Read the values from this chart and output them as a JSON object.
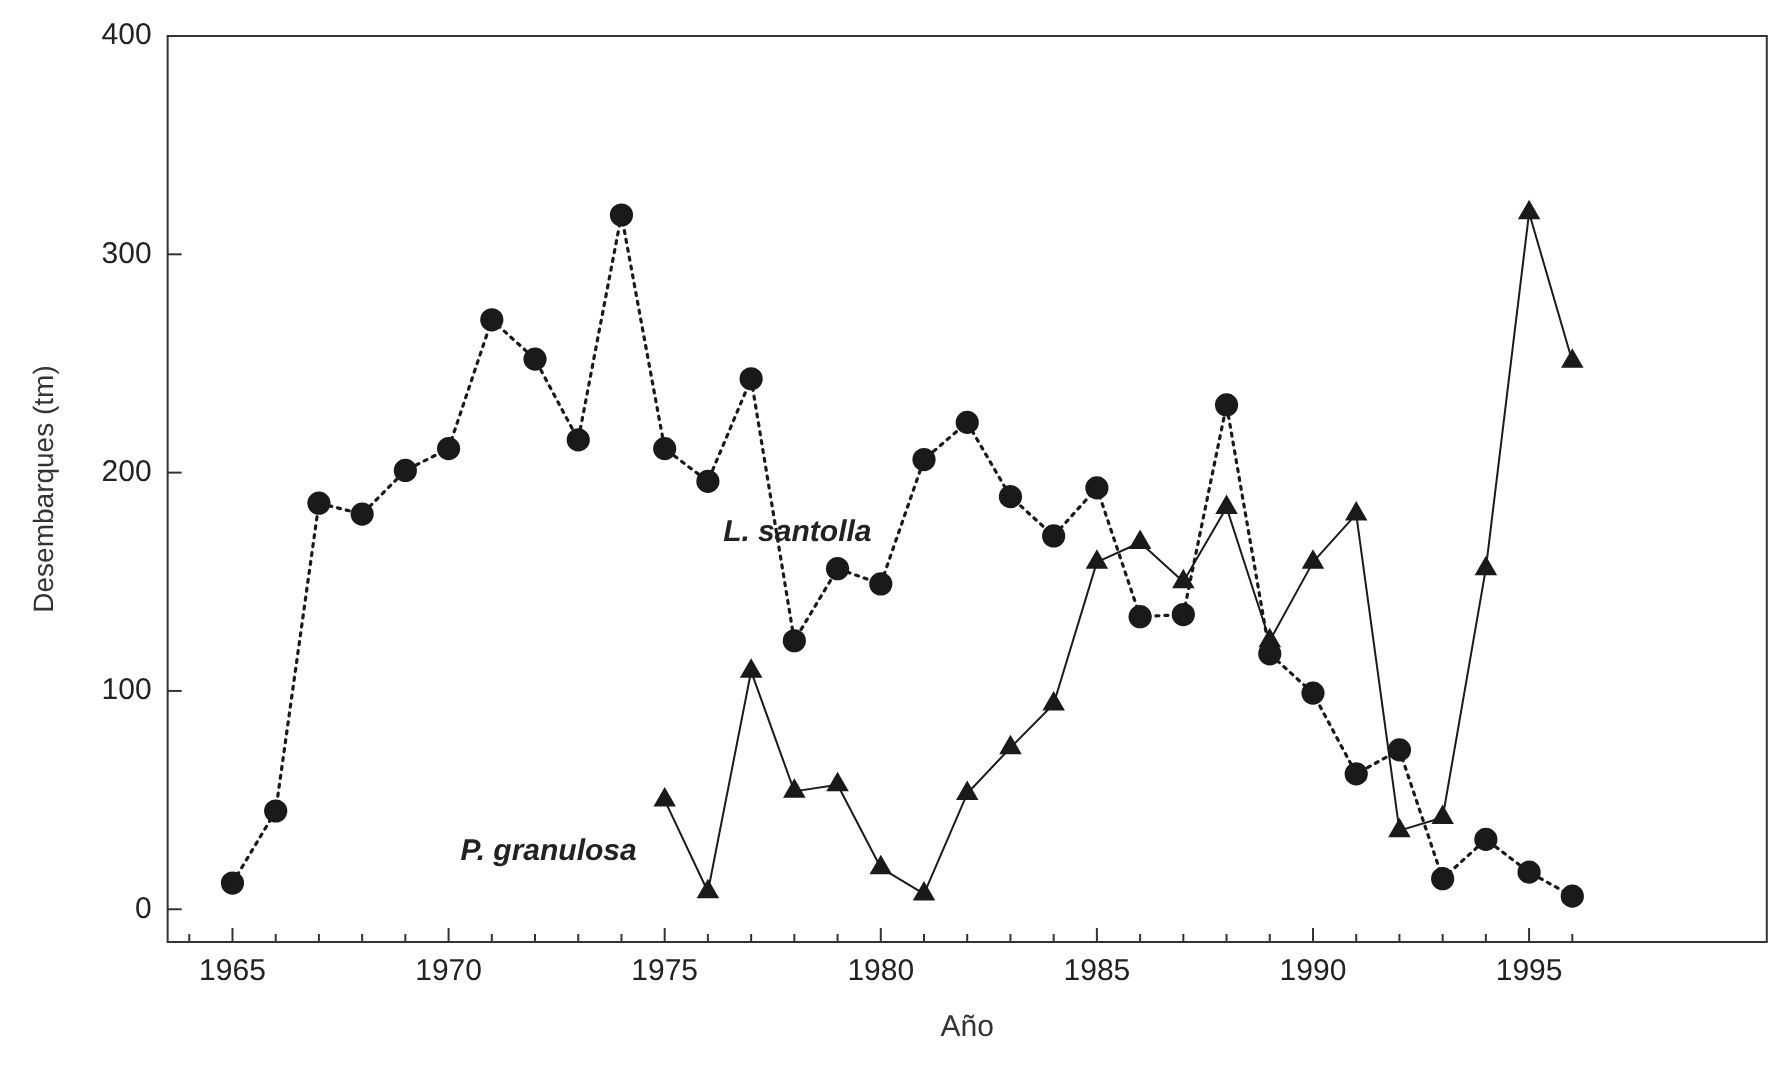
{
  "chart_data": {
    "type": "line",
    "xlabel": "Año",
    "ylabel": "Desembarques (tm)",
    "xlim": [
      1963.5,
      2000.5
    ],
    "ylim": [
      -15,
      400
    ],
    "xticks": [
      {
        "value": 1964,
        "label": null
      },
      1965,
      {
        "value": 1966,
        "label": null
      },
      {
        "value": 1967,
        "label": null
      },
      {
        "value": 1968,
        "label": null
      },
      {
        "value": 1969,
        "label": null
      },
      1970,
      {
        "value": 1971,
        "label": null
      },
      {
        "value": 1972,
        "label": null
      },
      {
        "value": 1973,
        "label": null
      },
      {
        "value": 1974,
        "label": null
      },
      1975,
      {
        "value": 1976,
        "label": null
      },
      {
        "value": 1977,
        "label": null
      },
      {
        "value": 1978,
        "label": null
      },
      {
        "value": 1979,
        "label": null
      },
      1980,
      {
        "value": 1981,
        "label": null
      },
      {
        "value": 1982,
        "label": null
      },
      {
        "value": 1983,
        "label": null
      },
      {
        "value": 1984,
        "label": null
      },
      1985,
      {
        "value": 1986,
        "label": null
      },
      {
        "value": 1987,
        "label": null
      },
      {
        "value": 1988,
        "label": null
      },
      {
        "value": 1989,
        "label": null
      },
      1990,
      {
        "value": 1991,
        "label": null
      },
      {
        "value": 1992,
        "label": null
      },
      {
        "value": 1993,
        "label": null
      },
      {
        "value": 1994,
        "label": null
      },
      1995,
      {
        "value": 1996,
        "label": null
      }
    ],
    "yticks": [
      0,
      100,
      200,
      300,
      400
    ],
    "grid": false,
    "legend": false,
    "series": [
      {
        "name": "L. santolla",
        "color": "#1a1a1a",
        "marker": "circle",
        "line_style": "dotted",
        "x": [
          1965,
          1966,
          1967,
          1968,
          1969,
          1970,
          1971,
          1972,
          1973,
          1974,
          1975,
          1976,
          1977,
          1978,
          1979,
          1980,
          1981,
          1982,
          1983,
          1984,
          1985,
          1986,
          1987,
          1988,
          1989,
          1990,
          1991,
          1992,
          1993,
          1994,
          1995,
          1996
        ],
        "values": [
          12,
          45,
          186,
          181,
          201,
          211,
          270,
          252,
          215,
          318,
          211,
          196,
          243,
          123,
          156,
          149,
          206,
          223,
          189,
          171,
          193,
          134,
          135,
          231,
          117,
          99,
          62,
          73,
          14,
          32,
          17,
          6
        ]
      },
      {
        "name": "P. granulosa",
        "color": "#1a1a1a",
        "marker": "triangle",
        "line_style": "solid",
        "x": [
          1975,
          1976,
          1977,
          1978,
          1979,
          1980,
          1981,
          1982,
          1983,
          1984,
          1985,
          1986,
          1987,
          1988,
          1989,
          1990,
          1991,
          1992,
          1993,
          1994,
          1995,
          1996
        ],
        "values": [
          50,
          8,
          109,
          54,
          57,
          19,
          7,
          53,
          74,
          94,
          159,
          168,
          150,
          184,
          123,
          159,
          181,
          36,
          42,
          156,
          319,
          251
        ]
      }
    ]
  }
}
